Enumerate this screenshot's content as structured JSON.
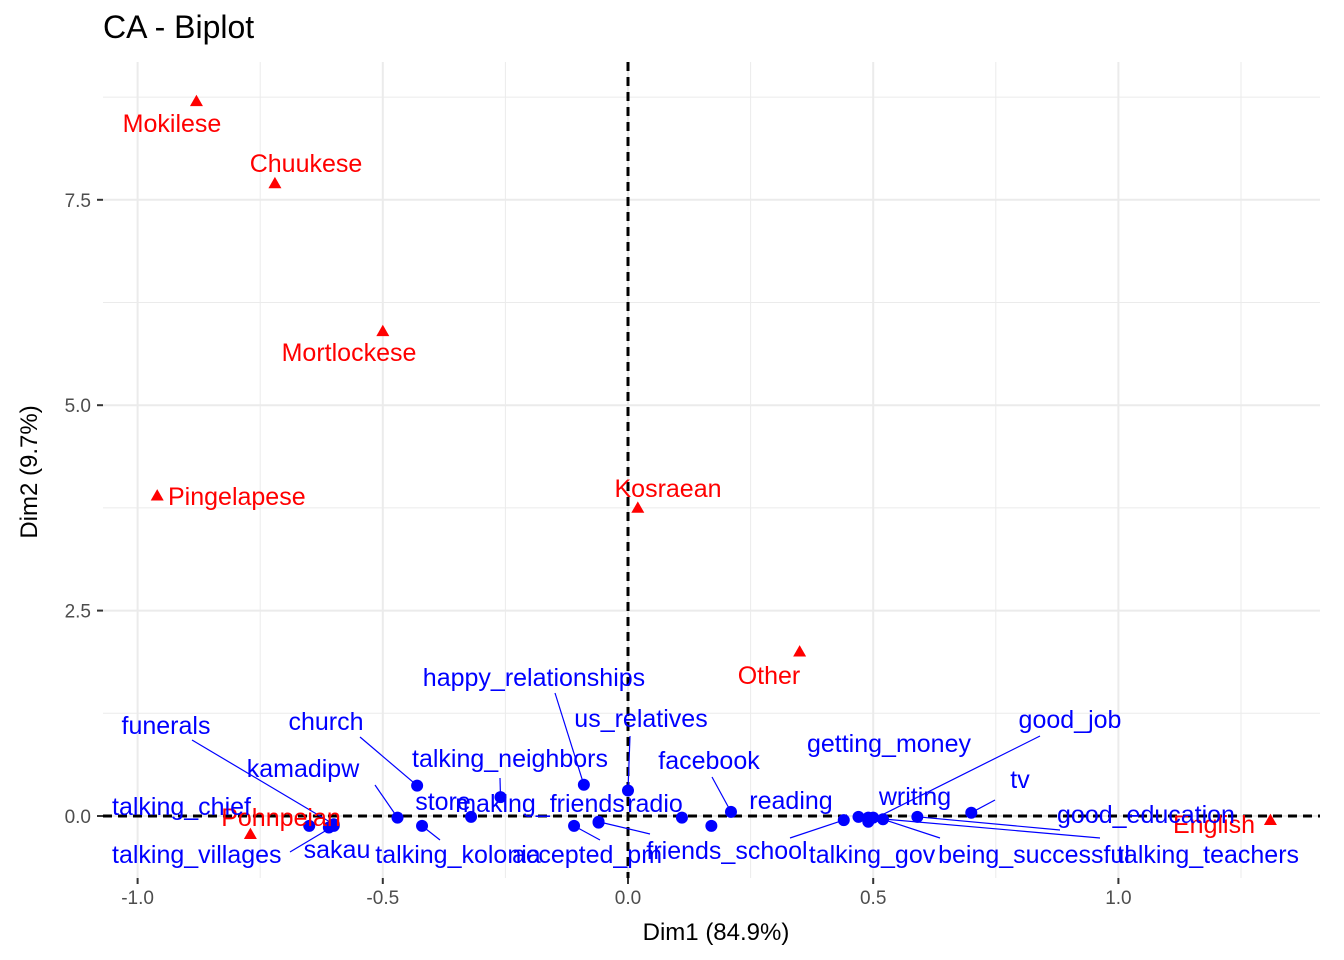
{
  "chart_data": {
    "type": "scatter",
    "title": "CA - Biplot",
    "xlabel": "Dim1 (84.9%)",
    "ylabel": "Dim2 (9.7%)",
    "xlim": [
      -1.0,
      1.4
    ],
    "ylim": [
      -0.3,
      9.0
    ],
    "x_ticks": [
      -1.0,
      -0.5,
      0.0,
      0.5,
      1.0
    ],
    "x_tick_labels": [
      "-1.0",
      "-0.5",
      "0.0",
      "0.5",
      "1.0"
    ],
    "y_ticks": [
      0.0,
      2.5,
      5.0,
      7.5
    ],
    "y_tick_labels": [
      "0.0",
      "2.5",
      "5.0",
      "7.5"
    ],
    "grid": true,
    "reference_lines": "dashed lines at x = 0 and y = 0",
    "colors": {
      "rows": "#0000ff",
      "cols": "#ff0000",
      "grid": "#ebebeb",
      "ref_line": "#000000"
    },
    "column_points": [
      {
        "label": "Mokilese",
        "x": -0.88,
        "y": 8.7
      },
      {
        "label": "Chuukese",
        "x": -0.72,
        "y": 7.7
      },
      {
        "label": "Mortlockese",
        "x": -0.5,
        "y": 5.9
      },
      {
        "label": "Pingelapese",
        "x": -0.96,
        "y": 3.9
      },
      {
        "label": "Kosraean",
        "x": 0.02,
        "y": 3.75
      },
      {
        "label": "Other",
        "x": 0.35,
        "y": 2.0
      },
      {
        "label": "Pohnpeian",
        "x": -0.77,
        "y": -0.22
      },
      {
        "label": "English",
        "x": 1.31,
        "y": -0.05
      }
    ],
    "row_points": [
      {
        "label": "funerals",
        "x": -0.6,
        "y": -0.1
      },
      {
        "label": "talking_chief",
        "x": -0.65,
        "y": -0.12
      },
      {
        "label": "talking_villages",
        "x": -0.6,
        "y": -0.12
      },
      {
        "label": "sakau",
        "x": -0.61,
        "y": -0.14
      },
      {
        "label": "kamadipw",
        "x": -0.47,
        "y": -0.02
      },
      {
        "label": "church",
        "x": -0.43,
        "y": 0.37
      },
      {
        "label": "store",
        "x": -0.32,
        "y": -0.01
      },
      {
        "label": "talking_kolonia",
        "x": -0.42,
        "y": -0.12
      },
      {
        "label": "talking_neighbors",
        "x": -0.26,
        "y": 0.23
      },
      {
        "label": "making_friends",
        "x": -0.06,
        "y": -0.08
      },
      {
        "label": "happy_relationships",
        "x": -0.09,
        "y": 0.38
      },
      {
        "label": "us_relatives",
        "x": 0.0,
        "y": 0.31
      },
      {
        "label": "accepted_pm",
        "x": -0.11,
        "y": -0.12
      },
      {
        "label": "radio",
        "x": 0.11,
        "y": -0.02
      },
      {
        "label": "friends_school",
        "x": -0.06,
        "y": -0.07
      },
      {
        "label": "facebook",
        "x": 0.21,
        "y": 0.05
      },
      {
        "label": "reading",
        "x": 0.17,
        "y": -0.12
      },
      {
        "label": "getting_money",
        "x": 0.47,
        "y": -0.01
      },
      {
        "label": "talking_gov",
        "x": 0.44,
        "y": -0.05
      },
      {
        "label": "writing",
        "x": 0.5,
        "y": -0.02
      },
      {
        "label": "being_successful",
        "x": 0.52,
        "y": -0.04
      },
      {
        "label": "good_job",
        "x": 0.49,
        "y": -0.07
      },
      {
        "label": "tv",
        "x": 0.7,
        "y": 0.04
      },
      {
        "label": "good_education",
        "x": 0.59,
        "y": -0.01
      },
      {
        "label": "talking_teachers",
        "x": 0.49,
        "y": -0.02
      }
    ]
  }
}
